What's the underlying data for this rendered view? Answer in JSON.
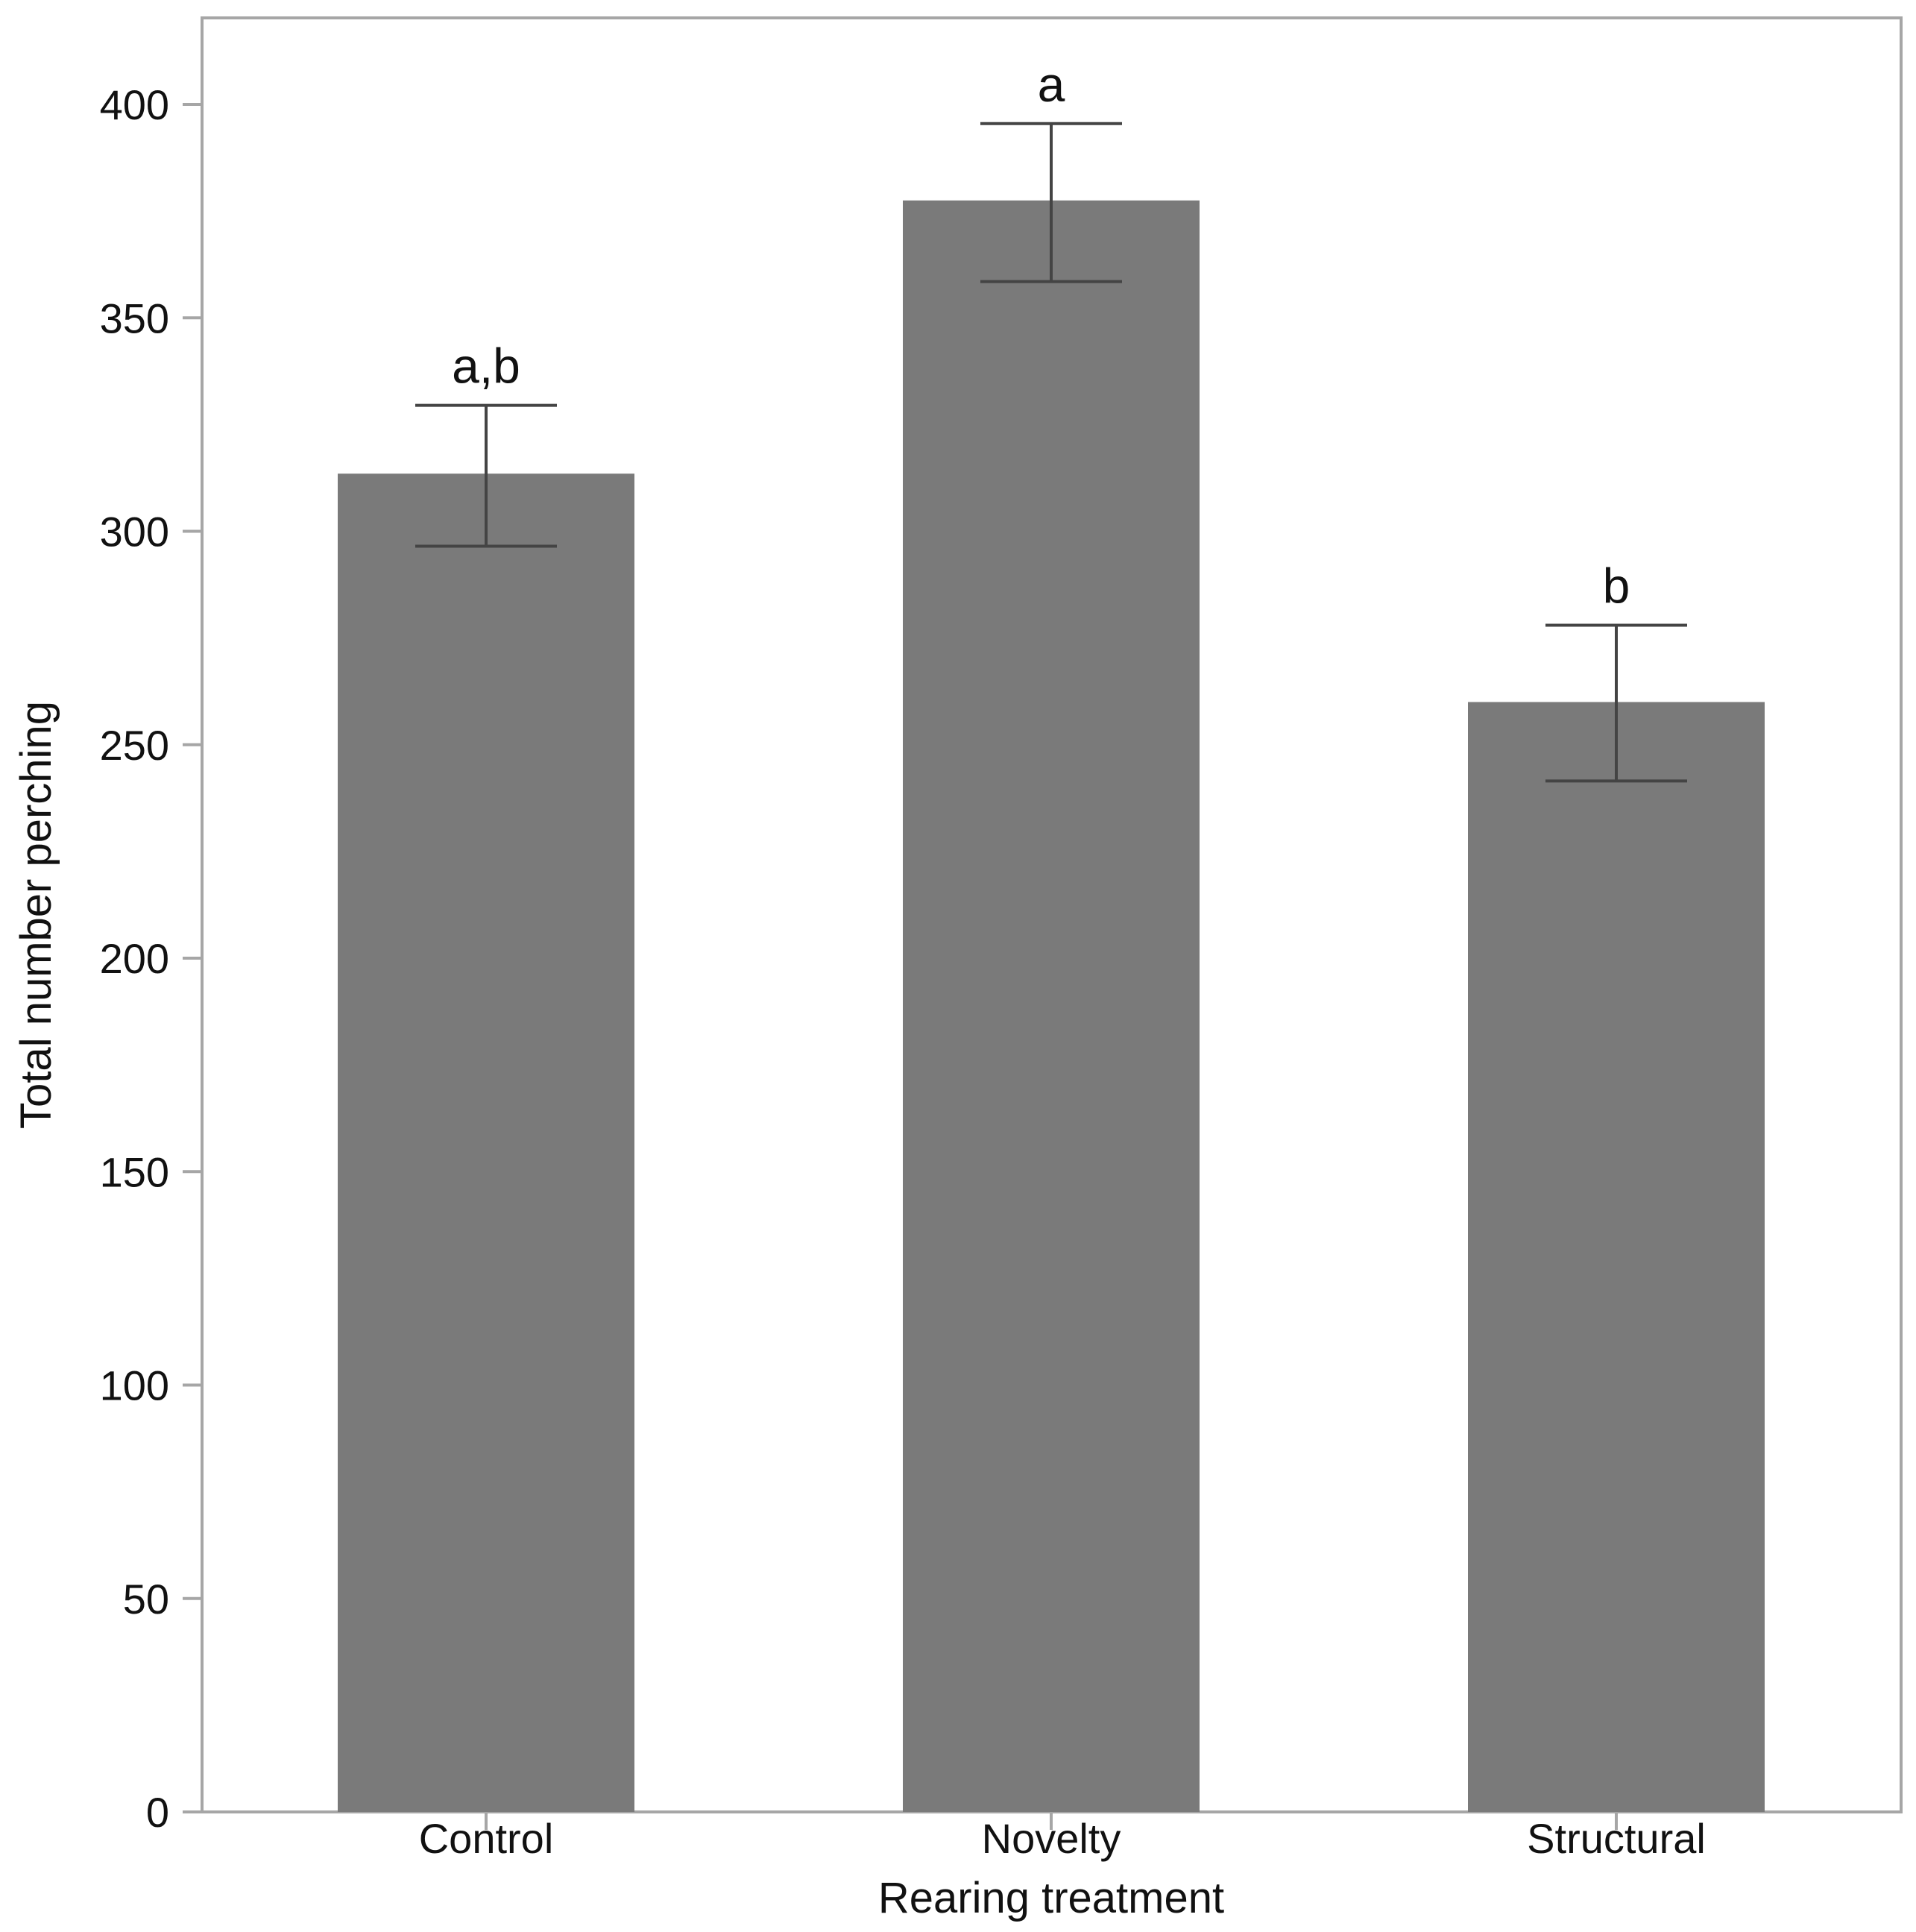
{
  "chart_data": {
    "type": "bar",
    "title": "",
    "xlabel": "Rearing treatment",
    "ylabel": "Total number perching",
    "ylim": [
      0,
      420
    ],
    "yticks": [
      0,
      50,
      100,
      150,
      200,
      250,
      300,
      350,
      400
    ],
    "grid": false,
    "legend": "none",
    "categories": [
      "Control",
      "Novelty",
      "Structural"
    ],
    "series": [
      {
        "values": [
          313.5,
          377.5,
          260
        ],
        "error_low": [
          296.5,
          358.5,
          241.5
        ],
        "error_high": [
          329.5,
          395.5,
          278
        ],
        "annotations": [
          "a,b",
          "a",
          "b"
        ]
      }
    ],
    "colors": {
      "bar": "#7a7a7a",
      "frame": "#a6a6a6",
      "error_bar": "#444444"
    }
  }
}
